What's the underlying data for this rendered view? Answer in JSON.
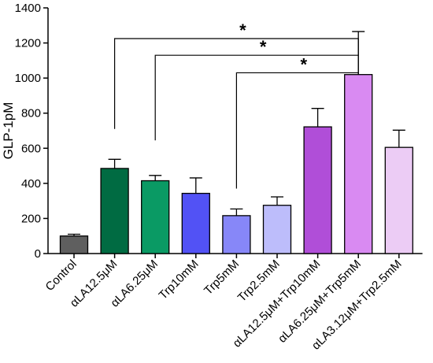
{
  "chart_data": {
    "type": "bar",
    "title": "",
    "xlabel": "",
    "ylabel": "GLP-1pM",
    "ylim": [
      0,
      1400
    ],
    "yticks": [
      0,
      200,
      400,
      600,
      800,
      1000,
      1200,
      1400
    ],
    "grid": false,
    "categories": [
      "Control",
      "αLA12.5μM",
      "αLA6.25μM",
      "Trp10mM",
      "Trp5mM",
      "Trp2.5mM",
      "αLA12.5μM+Trp10mM",
      "αLA6.25μM+Trp5mM",
      "αLA3.12μM+Trp2.5mM"
    ],
    "values": [
      100,
      485,
      415,
      343,
      216,
      275,
      722,
      1020,
      605
    ],
    "errors": [
      10,
      52,
      30,
      88,
      38,
      48,
      105,
      245,
      98
    ],
    "colors": [
      "#5f5f5f",
      "#006b42",
      "#0a9a64",
      "#5252f5",
      "#8787f8",
      "#bdbdfb",
      "#b04ed8",
      "#d98af2",
      "#ecccf5"
    ],
    "significance": [
      {
        "from": 1,
        "to": 7,
        "label": "*"
      },
      {
        "from": 2,
        "to": 7,
        "label": "*"
      },
      {
        "from": 4,
        "to": 7,
        "label": "*"
      }
    ]
  }
}
